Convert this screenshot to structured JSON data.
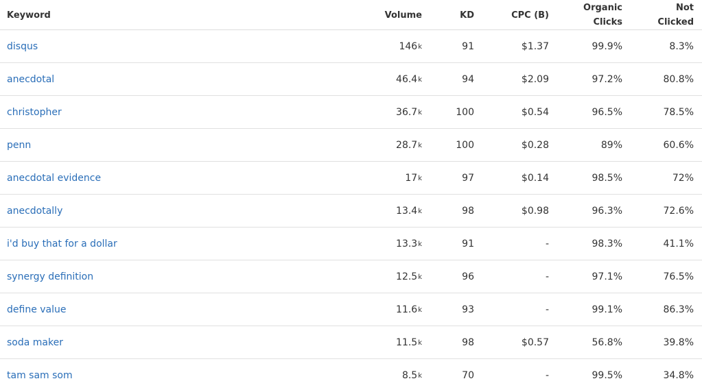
{
  "table": {
    "headers": {
      "keyword": "Keyword",
      "volume": "Volume",
      "kd": "KD",
      "cpc": "CPC (B)",
      "organic_line1": "Organic",
      "organic_line2": "Clicks",
      "not_clicked_line1": "Not",
      "not_clicked_line2": "Clicked"
    },
    "volume_suffix": "k",
    "rows": [
      {
        "keyword": "disqus",
        "volume": "146",
        "kd": "91",
        "cpc": "$1.37",
        "organic_clicks": "99.9%",
        "not_clicked": "8.3%"
      },
      {
        "keyword": "anecdotal",
        "volume": "46.4",
        "kd": "94",
        "cpc": "$2.09",
        "organic_clicks": "97.2%",
        "not_clicked": "80.8%"
      },
      {
        "keyword": "christopher",
        "volume": "36.7",
        "kd": "100",
        "cpc": "$0.54",
        "organic_clicks": "96.5%",
        "not_clicked": "78.5%"
      },
      {
        "keyword": "penn",
        "volume": "28.7",
        "kd": "100",
        "cpc": "$0.28",
        "organic_clicks": "89%",
        "not_clicked": "60.6%"
      },
      {
        "keyword": "anecdotal evidence",
        "volume": "17",
        "kd": "97",
        "cpc": "$0.14",
        "organic_clicks": "98.5%",
        "not_clicked": "72%"
      },
      {
        "keyword": "anecdotally",
        "volume": "13.4",
        "kd": "98",
        "cpc": "$0.98",
        "organic_clicks": "96.3%",
        "not_clicked": "72.6%"
      },
      {
        "keyword": "i'd buy that for a dollar",
        "volume": "13.3",
        "kd": "91",
        "cpc": "-",
        "organic_clicks": "98.3%",
        "not_clicked": "41.1%"
      },
      {
        "keyword": "synergy definition",
        "volume": "12.5",
        "kd": "96",
        "cpc": "-",
        "organic_clicks": "97.1%",
        "not_clicked": "76.5%"
      },
      {
        "keyword": "define value",
        "volume": "11.6",
        "kd": "93",
        "cpc": "-",
        "organic_clicks": "99.1%",
        "not_clicked": "86.3%"
      },
      {
        "keyword": "soda maker",
        "volume": "11.5",
        "kd": "98",
        "cpc": "$0.57",
        "organic_clicks": "56.8%",
        "not_clicked": "39.8%"
      },
      {
        "keyword": "tam sam som",
        "volume": "8.5",
        "kd": "70",
        "cpc": "-",
        "organic_clicks": "99.5%",
        "not_clicked": "34.8%"
      }
    ]
  },
  "colors": {
    "link": "#2a6eb8",
    "text": "#333333",
    "row_border": "#e0e0e0"
  }
}
